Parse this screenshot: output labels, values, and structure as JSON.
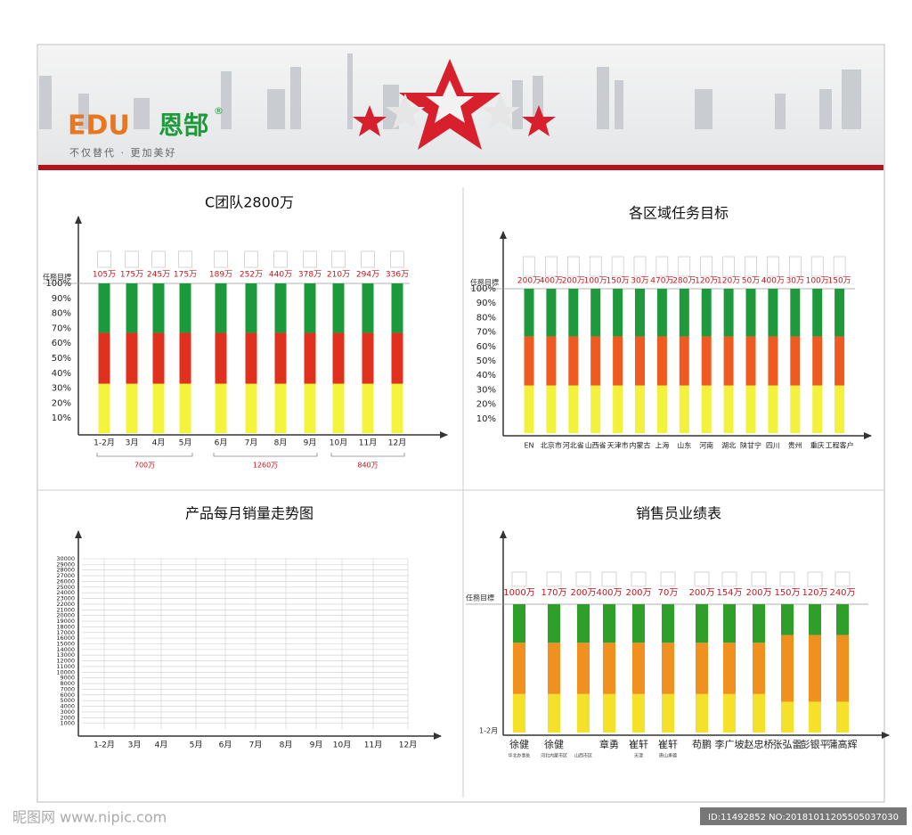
{
  "header": {
    "brand": "EDU",
    "brand_cn": "恩郜",
    "mark": "®",
    "slogan": "不仅替代 · 更加美好"
  },
  "chart_data": [
    {
      "type": "bar",
      "title": "C团队2800万",
      "target_label": "任務目標",
      "categories": [
        "1-2月",
        "3月",
        "4月",
        "5月",
        "6月",
        "7月",
        "8月",
        "9月",
        "10月",
        "11月",
        "12月"
      ],
      "target_labels": [
        "105万",
        "175万",
        "245万",
        "175万",
        "189万",
        "252万",
        "440万",
        "378万",
        "210万",
        "294万",
        "336万"
      ],
      "group_labels": [
        "700万",
        "1260万",
        "840万"
      ],
      "series": [
        {
          "color": "#f4f43c",
          "values": [
            33,
            33,
            33,
            33,
            33,
            33,
            33,
            33,
            33,
            33,
            33
          ]
        },
        {
          "color": "#e0301e",
          "values": [
            34,
            34,
            34,
            34,
            34,
            34,
            34,
            34,
            34,
            34,
            34
          ]
        },
        {
          "color": "#1b9a3c",
          "values": [
            33,
            33,
            33,
            33,
            33,
            33,
            33,
            33,
            33,
            33,
            33
          ]
        }
      ],
      "ylim": [
        0,
        100
      ],
      "yticks": [
        {
          "value": 10,
          "label": "10%"
        },
        {
          "value": 20,
          "label": "20%"
        },
        {
          "value": 30,
          "label": "30%"
        },
        {
          "value": 40,
          "label": "40%"
        },
        {
          "value": 50,
          "label": "50%"
        },
        {
          "value": 60,
          "label": "60%"
        },
        {
          "value": 70,
          "label": "70%"
        },
        {
          "value": 80,
          "label": "80%"
        },
        {
          "value": 90,
          "label": "90%"
        },
        {
          "value": 100,
          "label": "100%"
        }
      ]
    },
    {
      "type": "bar",
      "title": "各区域任务目标",
      "target_label": "任務目標",
      "categories": [
        "EN",
        "北京市",
        "河北省",
        "山西省",
        "天津市",
        "内蒙古",
        "上海",
        "山东",
        "河南",
        "湖北",
        "陕甘宁",
        "四川",
        "贵州",
        "重庆",
        "工程客户"
      ],
      "target_labels": [
        "200万",
        "400万",
        "200万",
        "100万",
        "150万",
        "30万",
        "470万",
        "280万",
        "120万",
        "120万",
        "50万",
        "400万",
        "30万",
        "100万",
        "150万"
      ],
      "series": [
        {
          "color": "#f2f23c",
          "values": [
            33,
            33,
            33,
            33,
            33,
            33,
            33,
            33,
            33,
            33,
            33,
            33,
            33,
            33,
            33
          ]
        },
        {
          "color": "#ee5a1f",
          "values": [
            34,
            34,
            34,
            34,
            34,
            34,
            34,
            34,
            34,
            34,
            34,
            34,
            34,
            34,
            34
          ]
        },
        {
          "color": "#1e9a3c",
          "values": [
            33,
            33,
            33,
            33,
            33,
            33,
            33,
            33,
            33,
            33,
            33,
            33,
            33,
            33,
            33
          ]
        }
      ],
      "ylim": [
        0,
        100
      ],
      "yticks": [
        {
          "value": 10,
          "label": "10%"
        },
        {
          "value": 20,
          "label": "20%"
        },
        {
          "value": 30,
          "label": "30%"
        },
        {
          "value": 40,
          "label": "40%"
        },
        {
          "value": 50,
          "label": "50%"
        },
        {
          "value": 60,
          "label": "60%"
        },
        {
          "value": 70,
          "label": "70%"
        },
        {
          "value": 80,
          "label": "80%"
        },
        {
          "value": 90,
          "label": "90%"
        },
        {
          "value": 100,
          "label": "100%"
        }
      ]
    },
    {
      "type": "line",
      "title": "产品每月销量走势图",
      "categories": [
        "1-2月",
        "3月",
        "4月",
        "5月",
        "6月",
        "7月",
        "8月",
        "9月",
        "10月",
        "11月",
        "12月"
      ],
      "ylim": [
        0,
        30000
      ],
      "grid": true,
      "yticks": [
        1000,
        2000,
        3000,
        4000,
        5000,
        6000,
        7000,
        8000,
        9000,
        10000,
        11000,
        12000,
        13000,
        14000,
        15000,
        16000,
        17000,
        18000,
        19000,
        20000,
        21000,
        22000,
        23000,
        24000,
        25000,
        26000,
        27000,
        28000,
        29000,
        30000
      ]
    },
    {
      "type": "bar",
      "title": "销售员业绩表",
      "target_label": "任務目標",
      "bottom_label": "1-2月",
      "categories": [
        "徐健",
        "徐健",
        null,
        "章勇",
        "崔轩",
        "崔轩",
        "苟鹏",
        "李广坡",
        "赵忠桥",
        "张弘雷",
        "彭银平",
        "蒲高辉"
      ],
      "subtitles": [
        "华北办事处",
        "河北内蒙市区",
        "山西市区",
        null,
        "天津",
        "唐山承德",
        null,
        null,
        null,
        null,
        null,
        null
      ],
      "target_labels": [
        "1000万",
        "170万",
        "200万",
        "400万",
        "200万",
        "70万",
        "200万",
        "154万",
        "200万",
        "150万",
        "120万",
        "240万"
      ],
      "series": [
        {
          "color": "#f5e02a",
          "values": [
            30,
            30,
            30,
            30,
            30,
            30,
            30,
            30,
            30,
            24,
            24,
            24
          ]
        },
        {
          "color": "#f0901e",
          "values": [
            40,
            40,
            40,
            40,
            40,
            40,
            40,
            40,
            40,
            52,
            52,
            52
          ]
        },
        {
          "color": "#2ea02a",
          "values": [
            30,
            30,
            30,
            30,
            30,
            30,
            30,
            30,
            30,
            24,
            24,
            24
          ]
        }
      ],
      "ylim": [
        0,
        100
      ]
    }
  ],
  "watermark": {
    "site": "昵图网 www.nipic.com",
    "id": "ID:11492852 NO:20181011205505037030"
  }
}
